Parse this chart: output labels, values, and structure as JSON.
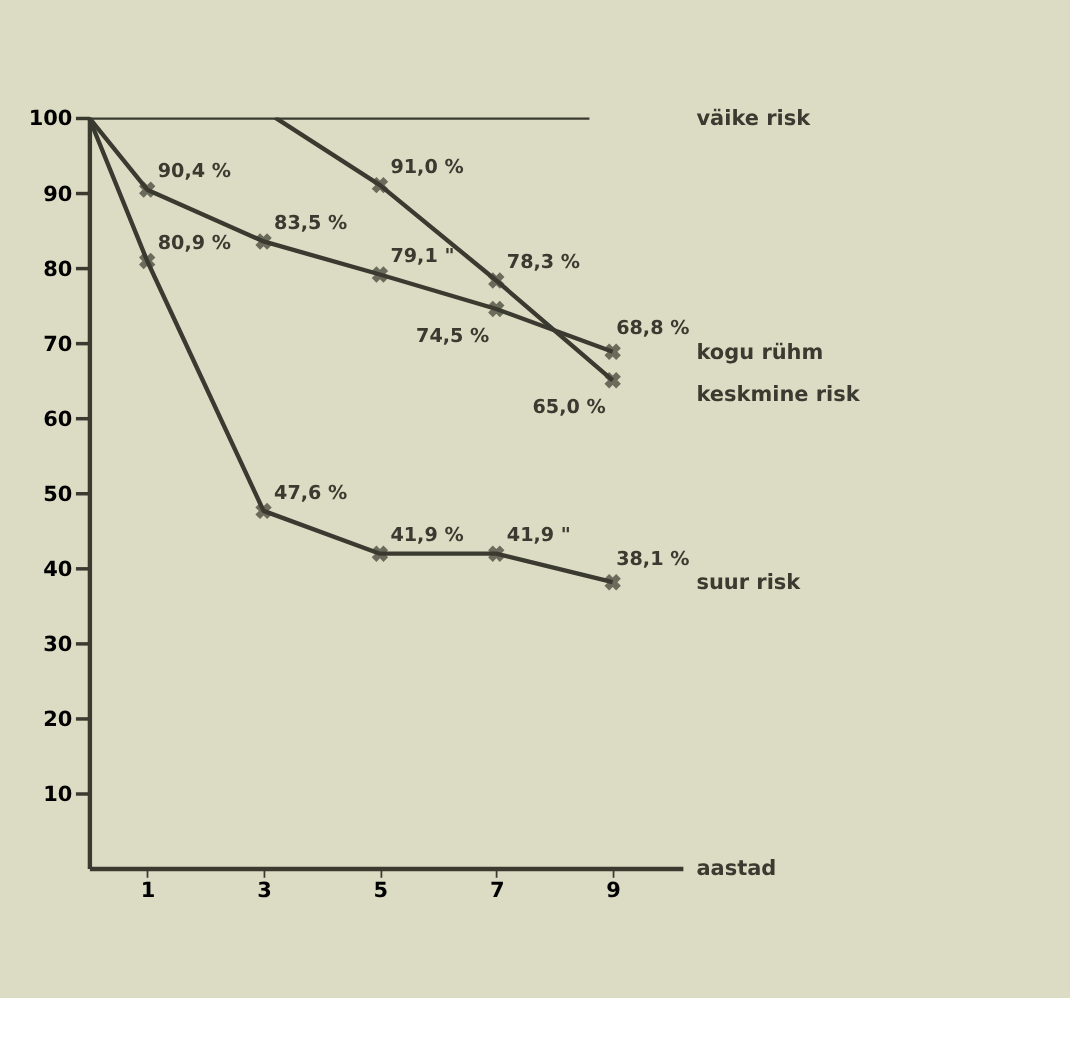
{
  "chart_data": {
    "type": "line",
    "xlabel": "aastad",
    "xlim": [
      0,
      10.2
    ],
    "xticks": [
      1,
      3,
      5,
      7,
      9
    ],
    "ylim": [
      0,
      100
    ],
    "yticks": [
      10,
      20,
      30,
      40,
      50,
      60,
      70,
      80,
      90,
      100
    ],
    "grid": false,
    "marker": "cross",
    "line_style": "solid",
    "series": [
      {
        "name": "väike risk",
        "color": "#3a3a30",
        "x": [
          0,
          8.6
        ],
        "values": [
          100,
          100
        ],
        "marker": "none",
        "value_labels": [
          null,
          null
        ]
      },
      {
        "name": "kogu rühm",
        "color": "#3a3a30",
        "x": [
          0,
          1,
          3,
          5,
          7,
          9
        ],
        "values": [
          100,
          90.4,
          83.5,
          79.1,
          74.5,
          68.8
        ],
        "value_labels": [
          null,
          "90,4 %",
          "83,5 %",
          "79,1 \"",
          "74,5 %",
          "68,8 %"
        ]
      },
      {
        "name": "keskmine risk",
        "color": "#3a3a30",
        "x": [
          3.2,
          5,
          7,
          9
        ],
        "values": [
          100,
          91.0,
          78.3,
          65.0
        ],
        "value_labels": [
          null,
          "91,0 %",
          "78,3 %",
          "65,0 %"
        ]
      },
      {
        "name": "suur risk",
        "color": "#3a3a30",
        "x": [
          0,
          1,
          3,
          5,
          7,
          9
        ],
        "values": [
          100,
          80.9,
          47.6,
          41.9,
          41.9,
          38.1
        ],
        "value_labels": [
          null,
          "80,9 %",
          "47,6 %",
          "41,9 %",
          "41,9 \"",
          "38,1 %"
        ]
      }
    ]
  }
}
